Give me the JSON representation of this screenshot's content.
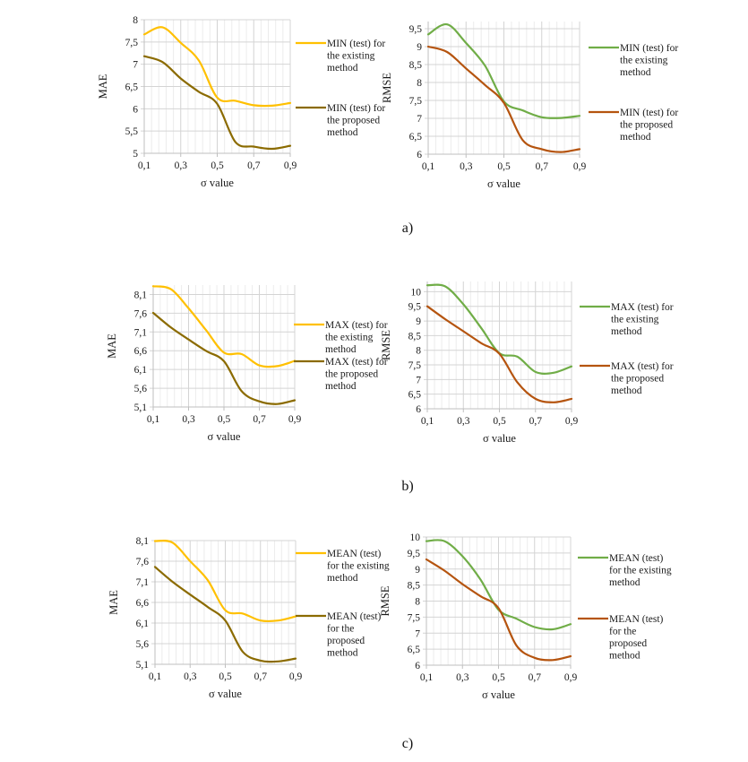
{
  "captions": [
    "a)",
    "b)",
    "c)"
  ],
  "colors": {
    "mae_existing": "#ffc000",
    "mae_proposed": "#8b6b00",
    "rmse_existing": "#70ad47",
    "rmse_proposed": "#b5540f"
  },
  "chart_data": [
    {
      "id": "a-mae",
      "type": "line",
      "title": "",
      "xlabel": "σ value",
      "ylabel": "MAE",
      "x": [
        0.1,
        0.2,
        0.3,
        0.4,
        0.5,
        0.6,
        0.7,
        0.8,
        0.9
      ],
      "xticks": [
        "0,1",
        "0,3",
        "0,5",
        "0,7",
        "0,9"
      ],
      "xtick_values": [
        0.1,
        0.3,
        0.5,
        0.7,
        0.9
      ],
      "xlim": [
        0.1,
        0.9
      ],
      "ylim": [
        5,
        8
      ],
      "yticks": [
        "5",
        "5,5",
        "6",
        "6,5",
        "7",
        "7,5",
        "8"
      ],
      "ytick_values": [
        5,
        5.5,
        6,
        6.5,
        7,
        7.5,
        8
      ],
      "grid": true,
      "legend": "right",
      "series": [
        {
          "name": "MIN (test) for the existing method",
          "legend_lines": [
            "MIN (test) for",
            "the existing",
            "method"
          ],
          "color_key": "mae_existing",
          "values": [
            7.67,
            7.83,
            7.48,
            7.08,
            6.25,
            6.18,
            6.08,
            6.07,
            6.13
          ]
        },
        {
          "name": "MIN (test) for the proposed method",
          "legend_lines": [
            "MIN (test) for",
            "the proposed",
            "method"
          ],
          "color_key": "mae_proposed",
          "values": [
            7.18,
            7.05,
            6.68,
            6.38,
            6.11,
            5.25,
            5.15,
            5.1,
            5.17
          ]
        }
      ]
    },
    {
      "id": "a-rmse",
      "type": "line",
      "title": "",
      "xlabel": "σ value",
      "ylabel": "RMSE",
      "x": [
        0.1,
        0.2,
        0.3,
        0.4,
        0.5,
        0.6,
        0.7,
        0.8,
        0.9
      ],
      "xticks": [
        "0,1",
        "0,3",
        "0,5",
        "0,7",
        "0,9"
      ],
      "xtick_values": [
        0.1,
        0.3,
        0.5,
        0.7,
        0.9
      ],
      "xlim": [
        0.1,
        0.9
      ],
      "ylim": [
        6,
        9.7
      ],
      "yticks": [
        "6",
        "6,5",
        "7",
        "7,5",
        "8",
        "8,5",
        "9",
        "9,5"
      ],
      "ytick_values": [
        6,
        6.5,
        7,
        7.5,
        8,
        8.5,
        9,
        9.5
      ],
      "grid": true,
      "legend": "right",
      "series": [
        {
          "name": "MIN (test) for the existing method",
          "legend_lines": [
            "MIN (test) for",
            "the existing",
            "method"
          ],
          "color_key": "rmse_existing",
          "values": [
            9.34,
            9.62,
            9.1,
            8.47,
            7.47,
            7.22,
            7.03,
            7.01,
            7.07
          ]
        },
        {
          "name": "MIN (test) for the proposed method",
          "legend_lines": [
            "MIN (test) for",
            "the proposed",
            "method"
          ],
          "color_key": "rmse_proposed",
          "values": [
            9.0,
            8.85,
            8.39,
            7.93,
            7.43,
            6.39,
            6.14,
            6.06,
            6.14
          ]
        }
      ]
    },
    {
      "id": "b-mae",
      "type": "line",
      "title": "",
      "xlabel": "σ value",
      "ylabel": "MAE",
      "x": [
        0.1,
        0.2,
        0.3,
        0.4,
        0.5,
        0.6,
        0.7,
        0.8,
        0.9
      ],
      "xticks": [
        "0,1",
        "0,3",
        "0,5",
        "0,7",
        "0,9"
      ],
      "xtick_values": [
        0.1,
        0.3,
        0.5,
        0.7,
        0.9
      ],
      "xlim": [
        0.1,
        0.9
      ],
      "ylim": [
        5.1,
        8.35
      ],
      "yticks": [
        "5,1",
        "5,6",
        "6,1",
        "6,6",
        "7,1",
        "7,6",
        "8,1"
      ],
      "ytick_values": [
        5.1,
        5.6,
        6.1,
        6.6,
        7.1,
        7.6,
        8.1
      ],
      "grid": true,
      "legend": "right",
      "series": [
        {
          "name": "MAX (test) for the existing method",
          "legend_lines": [
            "MAX (test) for",
            "the existing",
            "method"
          ],
          "color_key": "mae_existing",
          "values": [
            8.32,
            8.24,
            7.73,
            7.14,
            6.55,
            6.51,
            6.21,
            6.19,
            6.33
          ]
        },
        {
          "name": "MAX (test) for the proposed method",
          "legend_lines": [
            "MAX (test) for",
            "the proposed",
            "method"
          ],
          "color_key": "mae_proposed",
          "values": [
            7.61,
            7.22,
            6.9,
            6.59,
            6.32,
            5.52,
            5.25,
            5.18,
            5.28
          ]
        }
      ]
    },
    {
      "id": "b-rmse",
      "type": "line",
      "title": "",
      "xlabel": "σ value",
      "ylabel": "RMSE",
      "x": [
        0.1,
        0.2,
        0.3,
        0.4,
        0.5,
        0.6,
        0.7,
        0.8,
        0.9
      ],
      "xticks": [
        "0,1",
        "0,3",
        "0,5",
        "0,7",
        "0,9"
      ],
      "xtick_values": [
        0.1,
        0.3,
        0.5,
        0.7,
        0.9
      ],
      "xlim": [
        0.1,
        0.9
      ],
      "ylim": [
        6,
        10.35
      ],
      "yticks": [
        "6",
        "6,5",
        "7",
        "7,5",
        "8",
        "8,5",
        "9",
        "9,5",
        "10"
      ],
      "ytick_values": [
        6,
        6.5,
        7,
        7.5,
        8,
        8.5,
        9,
        9.5,
        10
      ],
      "grid": true,
      "legend": "right",
      "series": [
        {
          "name": "MAX (test) for the existing method",
          "legend_lines": [
            "MAX (test) for",
            "the existing",
            "method"
          ],
          "color_key": "rmse_existing",
          "values": [
            10.22,
            10.18,
            9.57,
            8.75,
            7.9,
            7.78,
            7.26,
            7.23,
            7.45
          ]
        },
        {
          "name": "MAX (test) for the proposed method",
          "legend_lines": [
            "MAX (test) for",
            "the proposed",
            "method"
          ],
          "color_key": "rmse_proposed",
          "values": [
            9.5,
            9.06,
            8.65,
            8.24,
            7.88,
            6.9,
            6.34,
            6.22,
            6.34
          ]
        }
      ]
    },
    {
      "id": "c-mae",
      "type": "line",
      "title": "",
      "xlabel": "σ value",
      "ylabel": "MAE",
      "x": [
        0.1,
        0.2,
        0.3,
        0.4,
        0.5,
        0.6,
        0.7,
        0.8,
        0.9
      ],
      "xticks": [
        "0,1",
        "0,3",
        "0,5",
        "0,7",
        "0,9"
      ],
      "xtick_values": [
        0.1,
        0.3,
        0.5,
        0.7,
        0.9
      ],
      "xlim": [
        0.1,
        0.9
      ],
      "ylim": [
        5.1,
        8.1
      ],
      "yticks": [
        "5,1",
        "5,6",
        "6,1",
        "6,6",
        "7,1",
        "7,6",
        "8,1"
      ],
      "ytick_values": [
        5.1,
        5.6,
        6.1,
        6.6,
        7.1,
        7.6,
        8.1
      ],
      "grid": true,
      "legend": "right",
      "series": [
        {
          "name": "MEAN (test) for the existing method",
          "legend_lines": [
            "MEAN (test)",
            "for the existing",
            "method"
          ],
          "color_key": "mae_existing",
          "values": [
            8.09,
            8.05,
            7.6,
            7.14,
            6.41,
            6.33,
            6.16,
            6.16,
            6.26
          ]
        },
        {
          "name": "MEAN (test) for the proposed method",
          "legend_lines": [
            "MEAN (test)",
            "for the",
            "proposed",
            "method"
          ],
          "color_key": "mae_proposed",
          "values": [
            7.46,
            7.1,
            6.79,
            6.49,
            6.16,
            5.4,
            5.19,
            5.17,
            5.24
          ]
        }
      ]
    },
    {
      "id": "c-rmse",
      "type": "line",
      "title": "",
      "xlabel": "σ value",
      "ylabel": "RMSE",
      "x": [
        0.1,
        0.2,
        0.3,
        0.4,
        0.5,
        0.6,
        0.7,
        0.8,
        0.9
      ],
      "xticks": [
        "0,1",
        "0,3",
        "0,5",
        "0,7",
        "0,9"
      ],
      "xtick_values": [
        0.1,
        0.3,
        0.5,
        0.7,
        0.9
      ],
      "xlim": [
        0.1,
        0.9
      ],
      "ylim": [
        6,
        10
      ],
      "yticks": [
        "6",
        "6,5",
        "7",
        "7,5",
        "8",
        "8,5",
        "9",
        "9,5",
        "10"
      ],
      "ytick_values": [
        6,
        6.5,
        7,
        7.5,
        8,
        8.5,
        9,
        9.5,
        10
      ],
      "grid": true,
      "legend": "right",
      "series": [
        {
          "name": "MEAN (test) for the existing method",
          "legend_lines": [
            "MEAN (test)",
            "for the existing",
            "method"
          ],
          "color_key": "rmse_existing",
          "values": [
            9.87,
            9.87,
            9.4,
            8.67,
            7.73,
            7.45,
            7.19,
            7.12,
            7.28
          ]
        },
        {
          "name": "MEAN (test) for the proposed method",
          "legend_lines": [
            "MEAN (test)",
            "for the",
            "proposed",
            "method"
          ],
          "color_key": "rmse_proposed",
          "values": [
            9.3,
            8.95,
            8.53,
            8.15,
            7.78,
            6.61,
            6.23,
            6.16,
            6.28
          ]
        }
      ]
    }
  ]
}
